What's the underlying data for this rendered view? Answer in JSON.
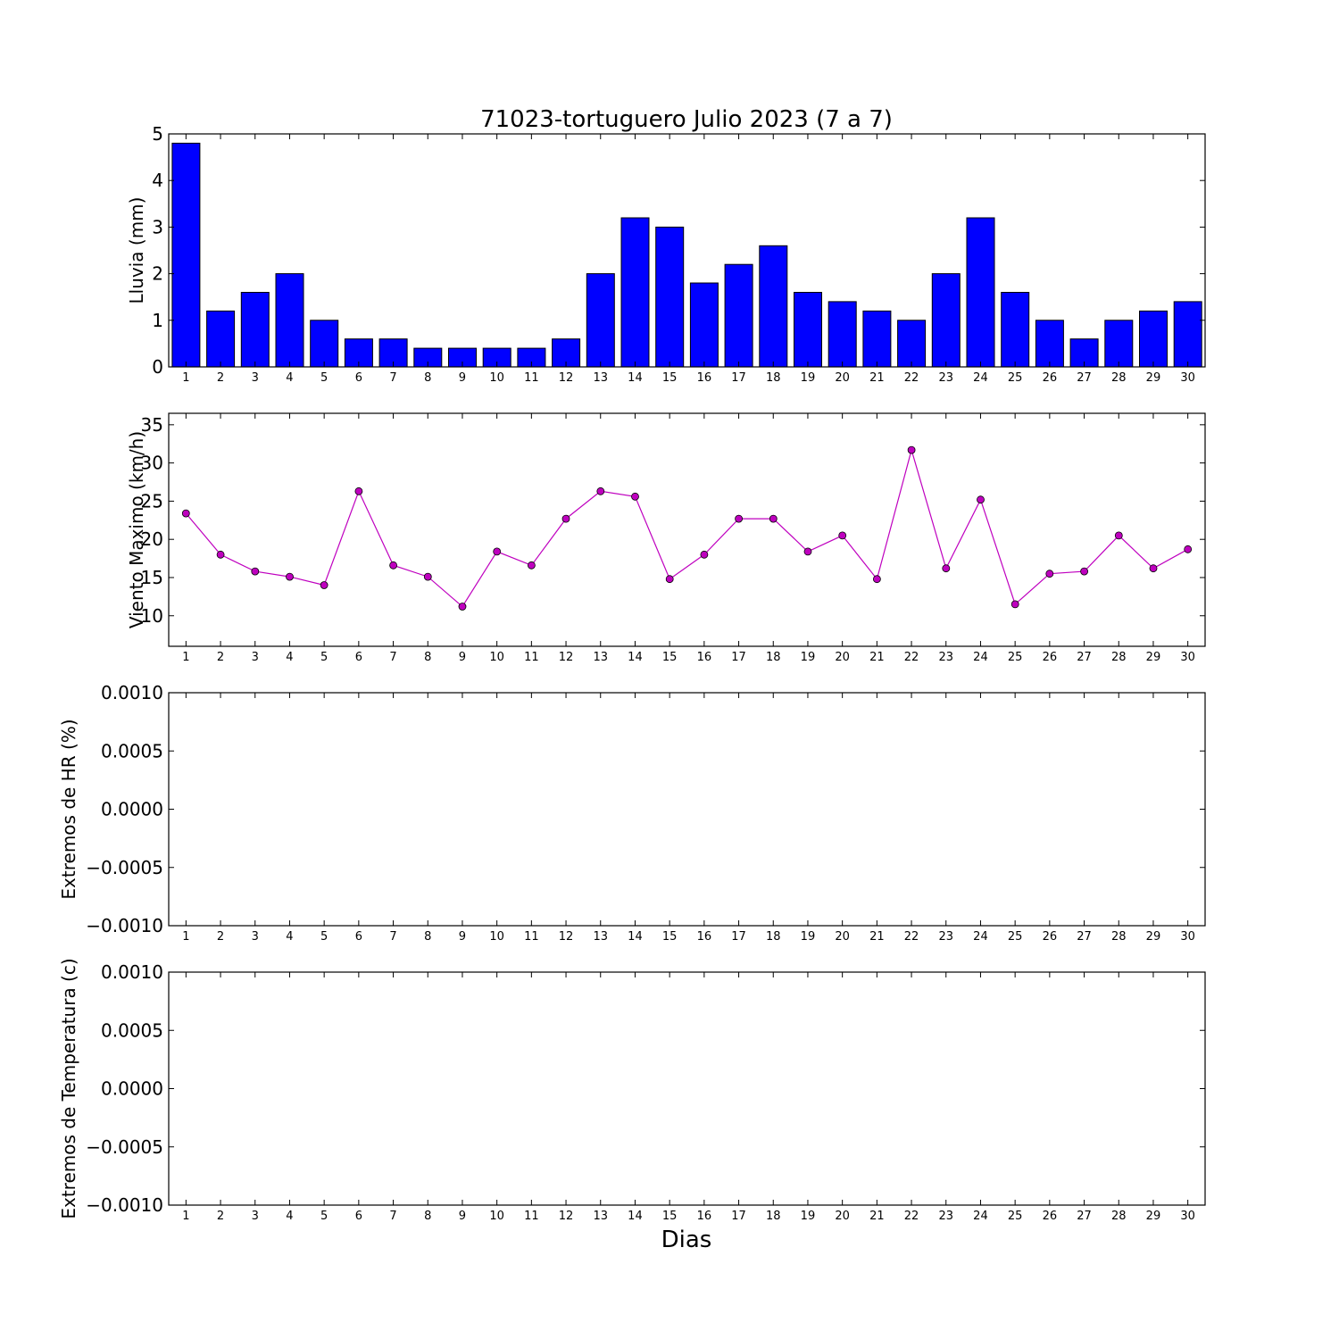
{
  "figure": {
    "title": "71023-tortuguero Julio 2023  (7 a 7)",
    "xlabel": "Dias"
  },
  "chart_data": [
    {
      "type": "bar",
      "ylabel": "Lluvia (mm)",
      "categories": [
        "1",
        "2",
        "3",
        "4",
        "5",
        "6",
        "7",
        "8",
        "9",
        "10",
        "11",
        "12",
        "13",
        "14",
        "15",
        "16",
        "17",
        "18",
        "19",
        "20",
        "21",
        "22",
        "23",
        "24",
        "25",
        "26",
        "27",
        "28",
        "29",
        "30"
      ],
      "values": [
        4.8,
        1.2,
        1.6,
        2.0,
        1.0,
        0.6,
        0.6,
        0.4,
        0.4,
        0.4,
        0.4,
        0.6,
        2.0,
        3.2,
        3.0,
        1.8,
        2.2,
        2.6,
        1.6,
        1.4,
        1.2,
        1.0,
        2.0,
        3.2,
        1.6,
        1.0,
        0.6,
        1.0,
        1.2,
        1.4
      ],
      "ylim": [
        0,
        5
      ],
      "yticks": [
        "0",
        "1",
        "2",
        "3",
        "4",
        "5"
      ],
      "color": "#0000ff",
      "grid": false
    },
    {
      "type": "line",
      "ylabel": "Viento Maximo (km/h)",
      "categories": [
        "1",
        "2",
        "3",
        "4",
        "5",
        "6",
        "7",
        "8",
        "9",
        "10",
        "11",
        "12",
        "13",
        "14",
        "15",
        "16",
        "17",
        "18",
        "19",
        "20",
        "21",
        "22",
        "23",
        "24",
        "25",
        "26",
        "27",
        "28",
        "29",
        "30"
      ],
      "values": [
        23.4,
        18.0,
        15.8,
        15.1,
        14.0,
        26.3,
        16.6,
        15.1,
        11.2,
        18.4,
        16.6,
        22.7,
        26.3,
        25.6,
        14.8,
        18.0,
        22.7,
        22.7,
        18.4,
        20.5,
        14.8,
        31.7,
        16.2,
        25.2,
        11.5,
        15.5,
        15.8,
        20.5,
        16.2,
        18.7
      ],
      "ylim": [
        6,
        36.5
      ],
      "yticks": [
        "10",
        "15",
        "20",
        "25",
        "30",
        "35"
      ],
      "color": "#bf00bf",
      "marker": "circle",
      "grid": false
    },
    {
      "type": "line",
      "ylabel": "Extremos de HR (%)",
      "categories": [
        "1",
        "2",
        "3",
        "4",
        "5",
        "6",
        "7",
        "8",
        "9",
        "10",
        "11",
        "12",
        "13",
        "14",
        "15",
        "16",
        "17",
        "18",
        "19",
        "20",
        "21",
        "22",
        "23",
        "24",
        "25",
        "26",
        "27",
        "28",
        "29",
        "30"
      ],
      "series": [],
      "ylim": [
        -0.001,
        0.001
      ],
      "yticks": [
        "−0.0010",
        "−0.0005",
        "0.0000",
        "0.0005",
        "0.0010"
      ],
      "grid": false
    },
    {
      "type": "line",
      "ylabel": "Extremos de Temperatura (c)",
      "categories": [
        "1",
        "2",
        "3",
        "4",
        "5",
        "6",
        "7",
        "8",
        "9",
        "10",
        "11",
        "12",
        "13",
        "14",
        "15",
        "16",
        "17",
        "18",
        "19",
        "20",
        "21",
        "22",
        "23",
        "24",
        "25",
        "26",
        "27",
        "28",
        "29",
        "30"
      ],
      "series": [],
      "ylim": [
        -0.001,
        0.001
      ],
      "yticks": [
        "−0.0010",
        "−0.0005",
        "0.0000",
        "0.0005",
        "0.0010"
      ],
      "grid": false
    }
  ]
}
